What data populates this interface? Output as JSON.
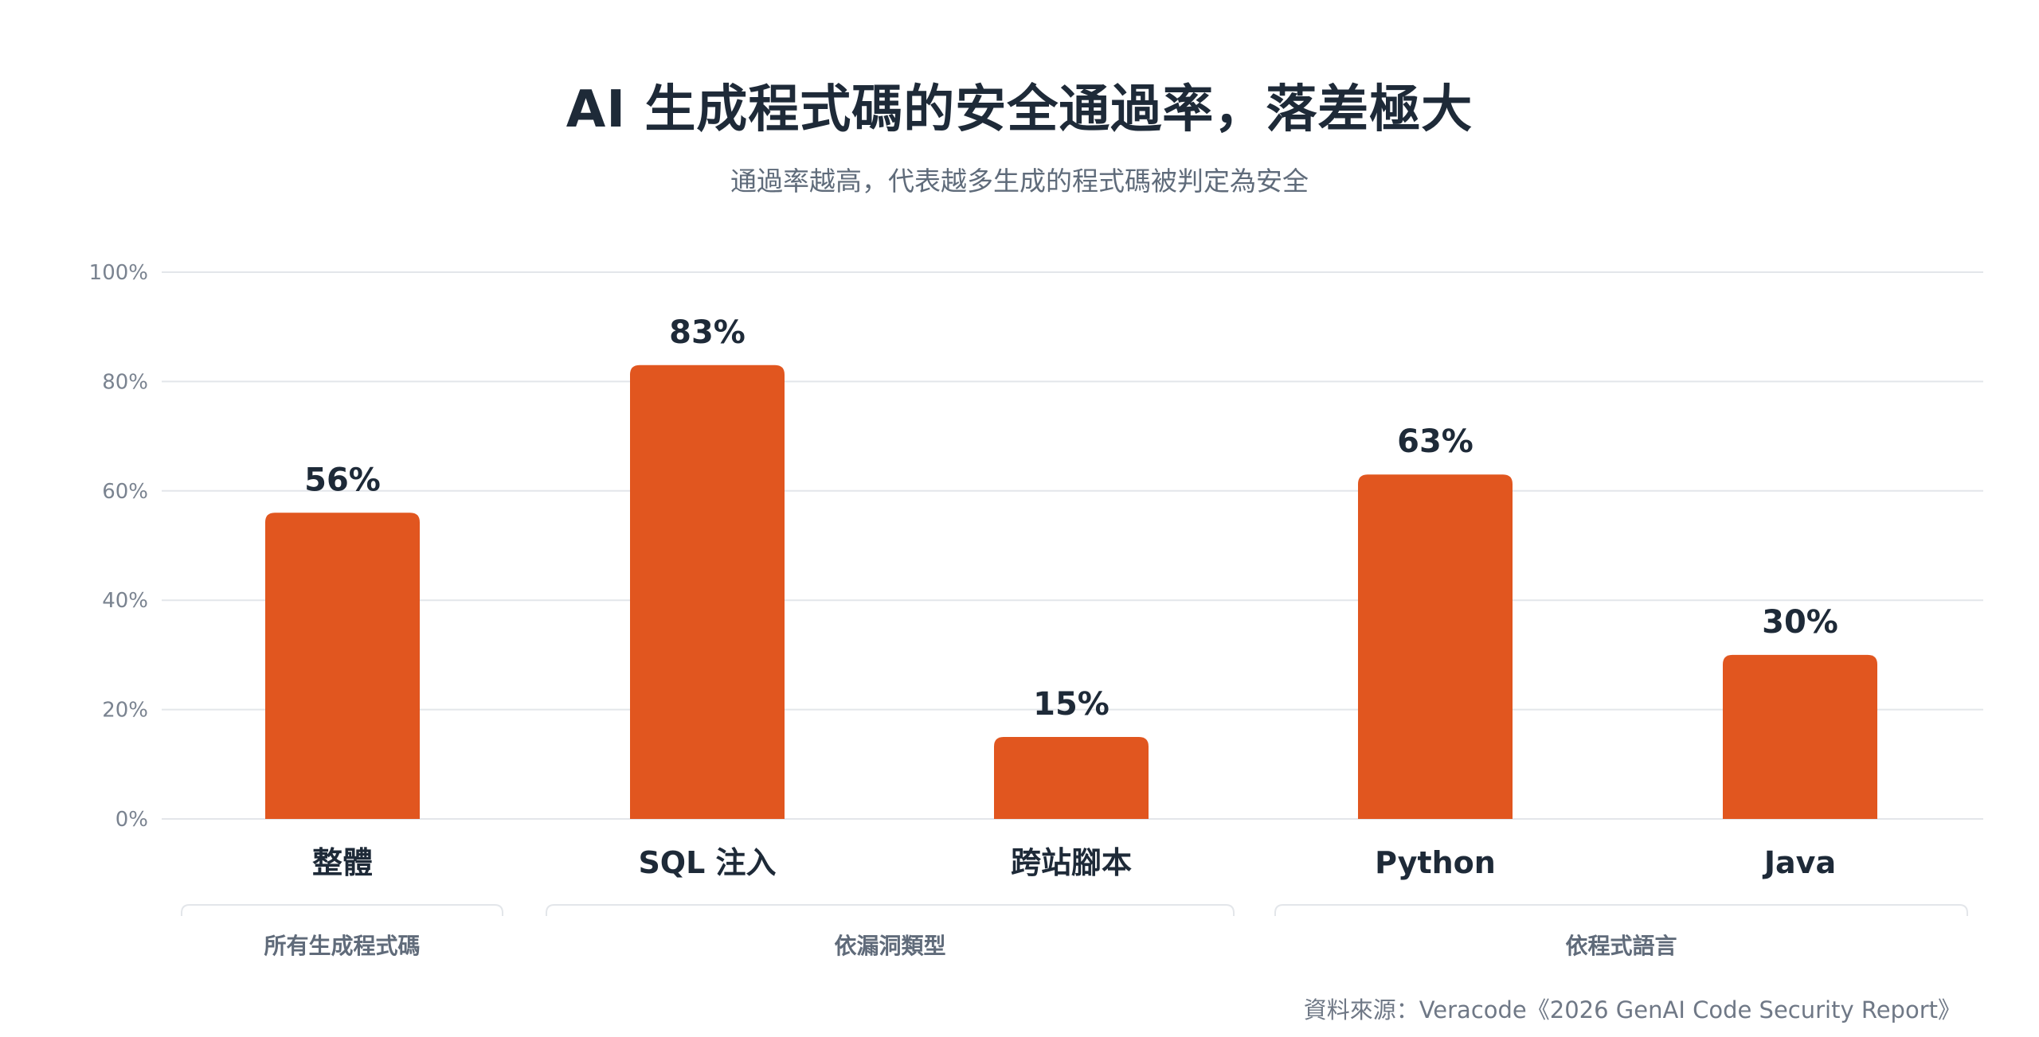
{
  "title": "AI 生成程式碼的安全通過率，落差極大",
  "subtitle": "通過率越高，代表越多生成的程式碼被判定為安全",
  "source": "資料來源：Veracode《2026 GenAI Code Security Report》",
  "colors": {
    "bar": "#e1561f",
    "grid": "#e3e6ea",
    "text_dark": "#1e2a38",
    "text_muted": "#606b7a"
  },
  "chart_data": {
    "type": "bar",
    "categories": [
      "整體",
      "SQL 注入",
      "跨站腳本",
      "Python",
      "Java"
    ],
    "values": [
      56,
      83,
      15,
      63,
      30
    ],
    "value_labels": [
      "56%",
      "83%",
      "15%",
      "63%",
      "30%"
    ],
    "title": "AI 生成程式碼的安全通過率，落差極大",
    "subtitle": "通過率越高，代表越多生成的程式碼被判定為安全",
    "xlabel": "",
    "ylabel": "",
    "ylim": [
      0,
      100
    ],
    "yticks": [
      0,
      20,
      40,
      60,
      80,
      100
    ],
    "ytick_labels": [
      "0%",
      "20%",
      "40%",
      "60%",
      "80%",
      "100%"
    ],
    "grid": true,
    "legend": "none",
    "groups": [
      {
        "label": "所有生成程式碼",
        "categories": [
          "整體"
        ]
      },
      {
        "label": "依漏洞類型",
        "categories": [
          "SQL 注入",
          "跨站腳本"
        ]
      },
      {
        "label": "依程式語言",
        "categories": [
          "Python",
          "Java"
        ]
      }
    ]
  }
}
